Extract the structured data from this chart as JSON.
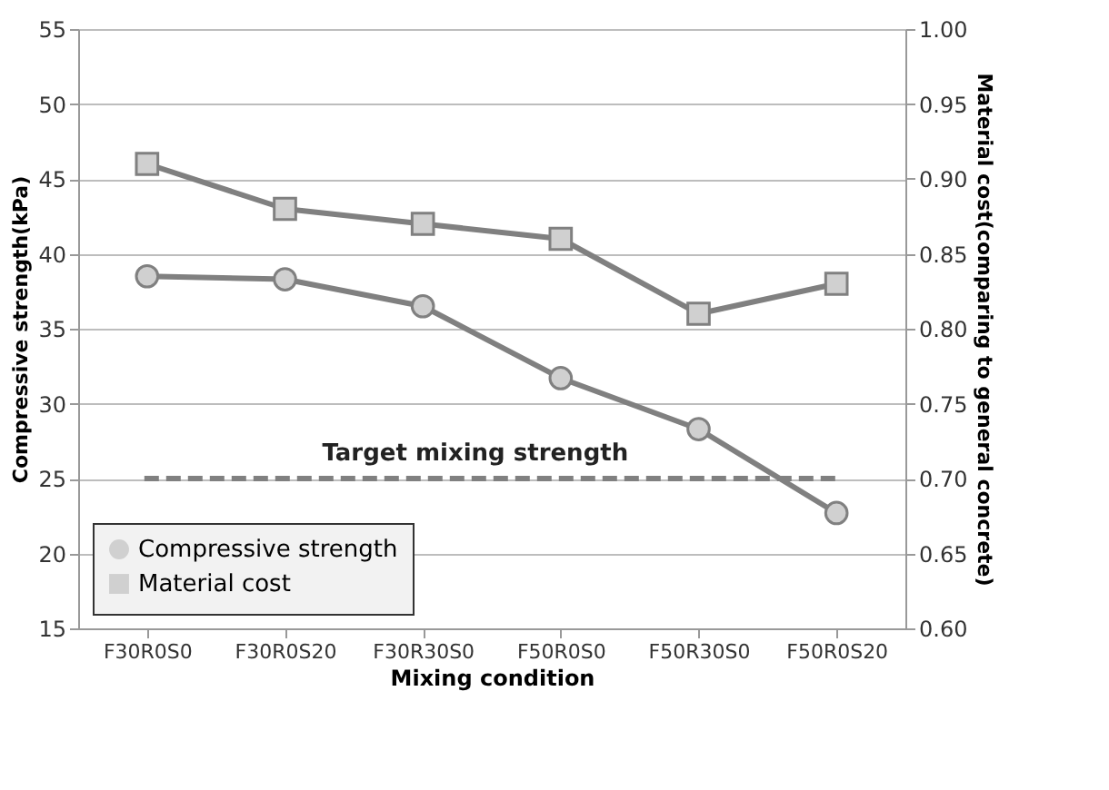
{
  "chart_data": {
    "type": "line",
    "xlabel": "Mixing condition",
    "ylabel": "Compressive strength(kPa)",
    "y2label": "Material cost(comparing to general concrete)",
    "categories": [
      "F30R0S0",
      "F30R0S20",
      "F30R30S0",
      "F50R0S0",
      "F50R30S0",
      "F50R0S20"
    ],
    "series": [
      {
        "name": "Compressive strength",
        "color": "#808080",
        "marker": "circle",
        "values": [
          38.5,
          38.3,
          36.5,
          31.7,
          28.3,
          22.7
        ]
      },
      {
        "name": "Material cost",
        "color": "#808080",
        "marker": "square",
        "axis": "y2",
        "values": [
          0.91,
          0.88,
          0.87,
          0.86,
          0.81,
          0.83
        ]
      }
    ],
    "ylim": [
      15,
      55
    ],
    "yticks": [
      15,
      20,
      25,
      30,
      35,
      40,
      45,
      50,
      55
    ],
    "y2lim": [
      0.6,
      1.0
    ],
    "y2ticks": [
      {
        "value": 0.6,
        "label": "0.60"
      },
      {
        "value": 0.65,
        "label": "0.65"
      },
      {
        "value": 0.7,
        "label": "0.70"
      },
      {
        "value": 0.75,
        "label": "0.75"
      },
      {
        "value": 0.8,
        "label": "0.80"
      },
      {
        "value": 0.85,
        "label": "0.85"
      },
      {
        "value": 0.9,
        "label": "0.90"
      },
      {
        "value": 0.95,
        "label": "0.95"
      },
      {
        "value": 1.0,
        "label": "1.00"
      }
    ],
    "ref_lines": [
      {
        "axis": "y",
        "value": 25,
        "label": "Target mixing strength",
        "line_style": "dashed",
        "color": "#808080"
      }
    ],
    "grid": "y",
    "legend": "bottom left"
  }
}
